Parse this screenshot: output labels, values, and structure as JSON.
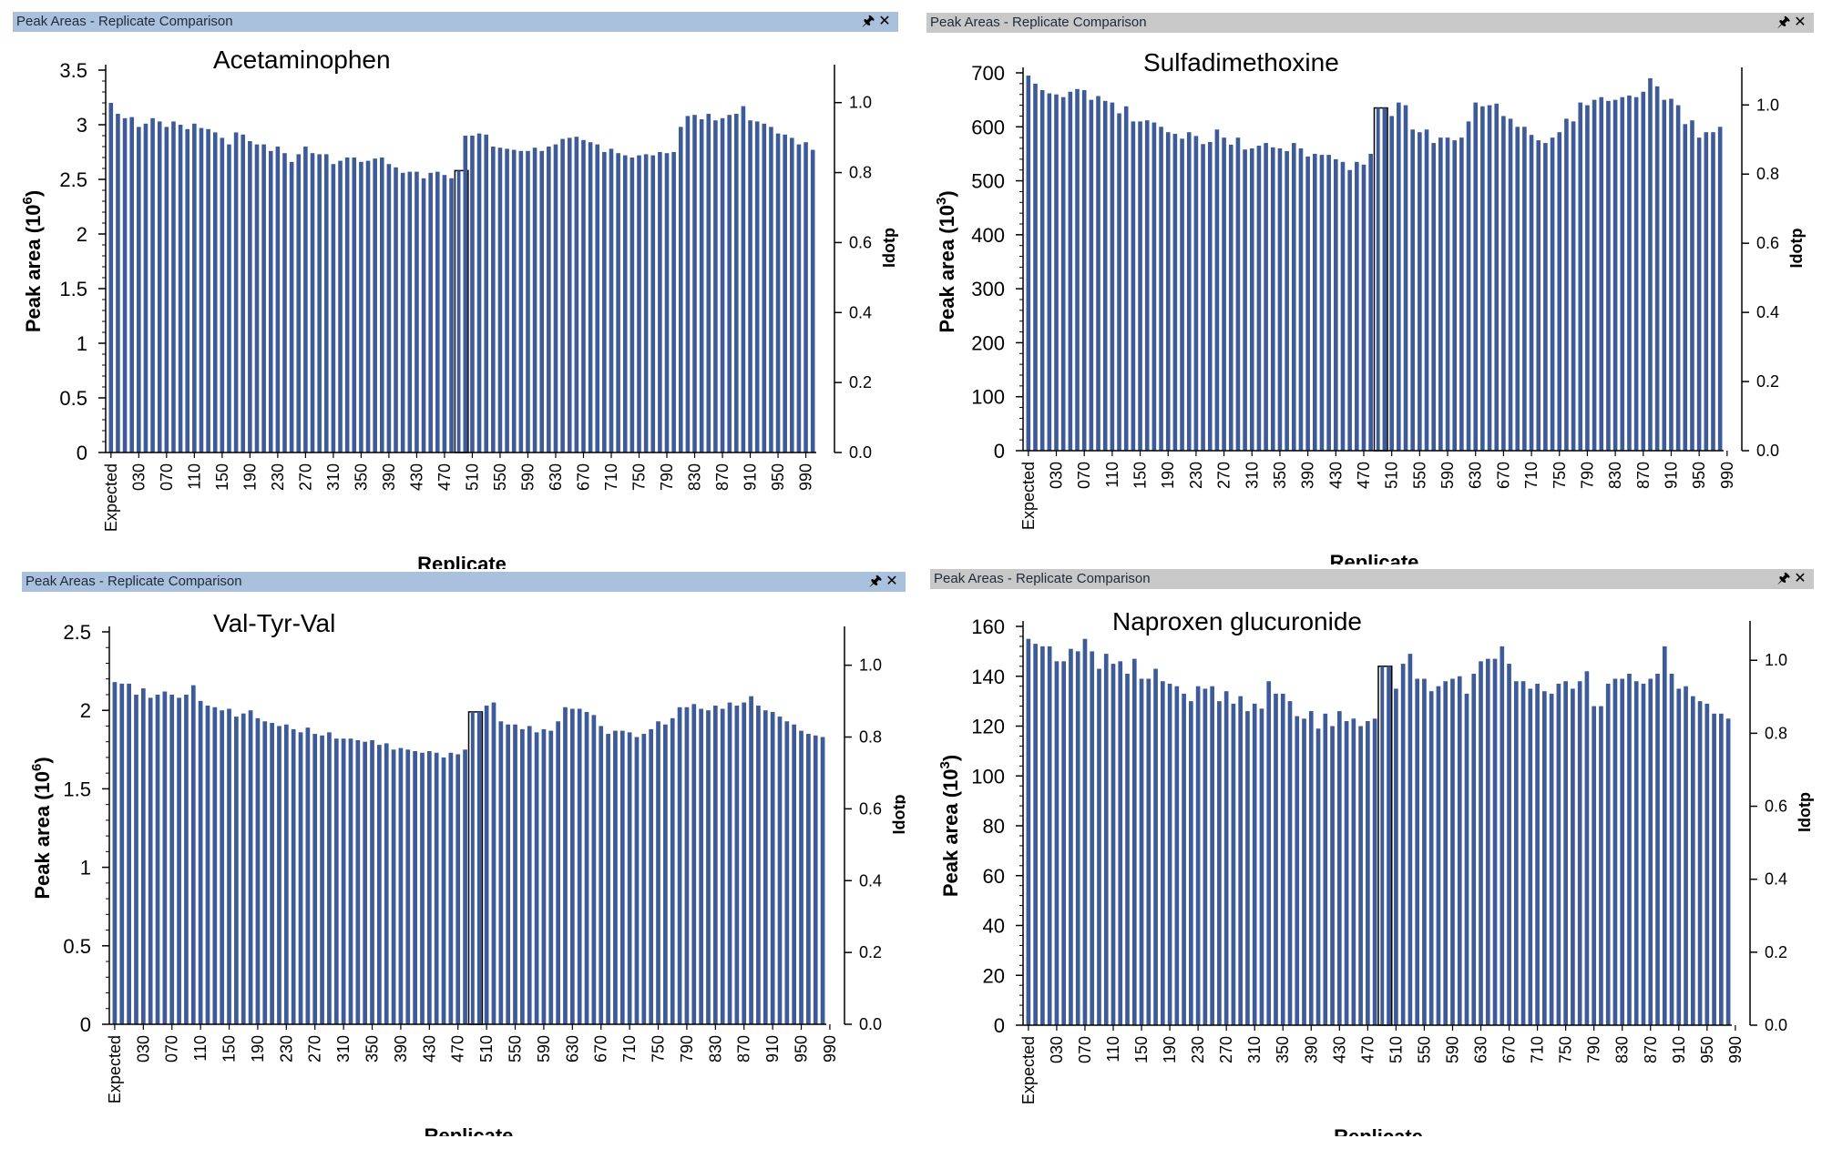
{
  "window_title": "Peak Areas - Replicate Comparison",
  "pin_icon": "pin-icon",
  "close_icon": "close-icon",
  "colors": {
    "bar": "#3d5a99",
    "active_title": "#a9c1dd",
    "inactive_title": "#c8c8c8"
  },
  "chart_data": [
    {
      "type": "bar",
      "title": "Acetaminophen",
      "xlabel": "Replicate",
      "ylabel": "Peak area (10",
      "ylabel_exp": "6",
      "y2label": "Idotp",
      "ylim": [
        0,
        3.5
      ],
      "yticks": [
        "0",
        "0.5",
        "1",
        "1.5",
        "2",
        "2.5",
        "3",
        "3.5"
      ],
      "y2ticks": [
        "0.0",
        "0.2",
        "0.4",
        "0.6",
        "0.8",
        "1.0"
      ],
      "highlight_index": 50,
      "xtick_labels": [
        "Expected",
        "030",
        "070",
        "110",
        "150",
        "190",
        "230",
        "270",
        "310",
        "350",
        "390",
        "430",
        "470",
        "510",
        "550",
        "590",
        "630",
        "670",
        "710",
        "750",
        "790",
        "830",
        "870",
        "910",
        "950",
        "990"
      ],
      "values": [
        3.2,
        3.1,
        3.06,
        3.07,
        2.98,
        3.01,
        3.06,
        3.03,
        2.98,
        3.03,
        3.0,
        2.96,
        3.01,
        2.97,
        2.96,
        2.93,
        2.88,
        2.82,
        2.93,
        2.91,
        2.85,
        2.82,
        2.82,
        2.76,
        2.8,
        2.74,
        2.66,
        2.73,
        2.8,
        2.74,
        2.73,
        2.73,
        2.64,
        2.67,
        2.7,
        2.7,
        2.66,
        2.67,
        2.69,
        2.7,
        2.64,
        2.61,
        2.56,
        2.57,
        2.57,
        2.51,
        2.56,
        2.57,
        2.54,
        2.51,
        2.58,
        2.9,
        2.9,
        2.92,
        2.91,
        2.8,
        2.79,
        2.78,
        2.77,
        2.76,
        2.76,
        2.79,
        2.76,
        2.8,
        2.82,
        2.87,
        2.88,
        2.89,
        2.86,
        2.84,
        2.82,
        2.75,
        2.78,
        2.74,
        2.72,
        2.7,
        2.72,
        2.73,
        2.72,
        2.75,
        2.74,
        2.75,
        2.98,
        3.08,
        3.09,
        3.05,
        3.1,
        3.04,
        3.06,
        3.09,
        3.1,
        3.17,
        3.04,
        3.03,
        3.01,
        2.98,
        2.92,
        2.91,
        2.88,
        2.82,
        2.84,
        2.77
      ]
    },
    {
      "type": "bar",
      "title": "Sulfadimethoxine",
      "xlabel": "Replicate",
      "ylabel": "Peak area (10",
      "ylabel_exp": "3",
      "y2label": "Idotp",
      "ylim": [
        0,
        700
      ],
      "yticks": [
        "0",
        "100",
        "200",
        "300",
        "400",
        "500",
        "600",
        "700"
      ],
      "y2ticks": [
        "0.0",
        "0.2",
        "0.4",
        "0.6",
        "0.8",
        "1.0"
      ],
      "highlight_index": 50,
      "xtick_labels": [
        "Expected",
        "030",
        "070",
        "110",
        "150",
        "190",
        "230",
        "270",
        "310",
        "350",
        "390",
        "430",
        "470",
        "510",
        "550",
        "590",
        "630",
        "670",
        "710",
        "750",
        "790",
        "830",
        "870",
        "910",
        "950",
        "990"
      ],
      "values": [
        695,
        680,
        668,
        662,
        660,
        655,
        665,
        670,
        668,
        650,
        657,
        648,
        645,
        625,
        638,
        610,
        610,
        612,
        608,
        600,
        590,
        587,
        578,
        590,
        583,
        568,
        572,
        595,
        580,
        567,
        580,
        558,
        560,
        565,
        570,
        562,
        560,
        555,
        570,
        560,
        545,
        550,
        548,
        548,
        540,
        535,
        520,
        535,
        530,
        550,
        635,
        635,
        620,
        645,
        640,
        595,
        590,
        595,
        570,
        580,
        580,
        575,
        580,
        610,
        645,
        638,
        640,
        643,
        620,
        615,
        600,
        600,
        585,
        575,
        570,
        580,
        590,
        615,
        610,
        645,
        640,
        650,
        655,
        648,
        650,
        655,
        658,
        655,
        665,
        690,
        675,
        650,
        652,
        640,
        605,
        612,
        580,
        590,
        590,
        600
      ]
    },
    {
      "type": "bar",
      "title": "Val-Tyr-Val",
      "xlabel": "Replicate",
      "ylabel": "Peak area (10",
      "ylabel_exp": "6",
      "y2label": "Idotp",
      "ylim": [
        0,
        2.5
      ],
      "yticks": [
        "0",
        "0.5",
        "1",
        "1.5",
        "2",
        "2.5"
      ],
      "y2ticks": [
        "0.0",
        "0.2",
        "0.4",
        "0.6",
        "0.8",
        "1.0"
      ],
      "highlight_index": 50,
      "xtick_labels": [
        "Expected",
        "030",
        "070",
        "110",
        "150",
        "190",
        "230",
        "270",
        "310",
        "350",
        "390",
        "430",
        "470",
        "510",
        "550",
        "590",
        "630",
        "670",
        "710",
        "750",
        "790",
        "830",
        "870",
        "910",
        "950",
        "990"
      ],
      "values": [
        2.18,
        2.17,
        2.17,
        2.1,
        2.14,
        2.08,
        2.1,
        2.12,
        2.1,
        2.08,
        2.1,
        2.16,
        2.06,
        2.03,
        2.02,
        2.0,
        2.01,
        1.96,
        1.98,
        2.0,
        1.95,
        1.93,
        1.92,
        1.9,
        1.91,
        1.88,
        1.86,
        1.89,
        1.85,
        1.84,
        1.86,
        1.82,
        1.82,
        1.82,
        1.81,
        1.8,
        1.81,
        1.78,
        1.79,
        1.75,
        1.76,
        1.75,
        1.74,
        1.73,
        1.74,
        1.73,
        1.7,
        1.73,
        1.72,
        1.75,
        1.99,
        1.99,
        2.03,
        2.05,
        1.93,
        1.91,
        1.91,
        1.88,
        1.9,
        1.86,
        1.88,
        1.87,
        1.93,
        2.02,
        2.01,
        2.01,
        1.99,
        1.97,
        1.9,
        1.85,
        1.87,
        1.87,
        1.86,
        1.83,
        1.85,
        1.88,
        1.93,
        1.91,
        1.95,
        2.02,
        2.02,
        2.04,
        2.01,
        2.0,
        2.03,
        2.01,
        2.05,
        2.03,
        2.05,
        2.09,
        2.03,
        2.0,
        1.99,
        1.96,
        1.93,
        1.91,
        1.87,
        1.85,
        1.84,
        1.83
      ]
    },
    {
      "type": "bar",
      "title": "Naproxen glucuronide",
      "xlabel": "Replicate",
      "ylabel": "Peak area (10",
      "ylabel_exp": "3",
      "y2label": "Idotp",
      "ylim": [
        0,
        160
      ],
      "yticks": [
        "0",
        "20",
        "40",
        "60",
        "80",
        "100",
        "120",
        "140",
        "160"
      ],
      "y2ticks": [
        "0.0",
        "0.2",
        "0.4",
        "0.6",
        "0.8",
        "1.0"
      ],
      "highlight_index": 50,
      "xtick_labels": [
        "Expected",
        "030",
        "070",
        "110",
        "150",
        "190",
        "230",
        "270",
        "310",
        "350",
        "390",
        "430",
        "470",
        "510",
        "550",
        "590",
        "630",
        "670",
        "710",
        "750",
        "790",
        "830",
        "870",
        "910",
        "950",
        "990"
      ],
      "values": [
        155,
        153,
        152,
        152,
        146,
        146,
        151,
        150,
        155,
        150,
        143,
        149,
        145,
        146,
        141,
        147,
        139,
        139,
        143,
        138,
        137,
        136,
        133,
        130,
        136,
        135,
        136,
        130,
        134,
        129,
        132,
        126,
        129,
        127,
        138,
        133,
        133,
        130,
        124,
        123,
        126,
        119,
        125,
        120,
        126,
        122,
        123,
        120,
        122,
        123,
        144,
        144,
        135,
        145,
        149,
        139,
        139,
        134,
        136,
        138,
        139,
        140,
        133,
        141,
        146,
        147,
        147,
        152,
        145,
        138,
        138,
        135,
        137,
        134,
        133,
        137,
        138,
        135,
        138,
        142,
        128,
        128,
        137,
        139,
        139,
        141,
        138,
        137,
        139,
        141,
        152,
        141,
        135,
        136,
        132,
        130,
        129,
        125,
        125,
        123
      ]
    }
  ]
}
